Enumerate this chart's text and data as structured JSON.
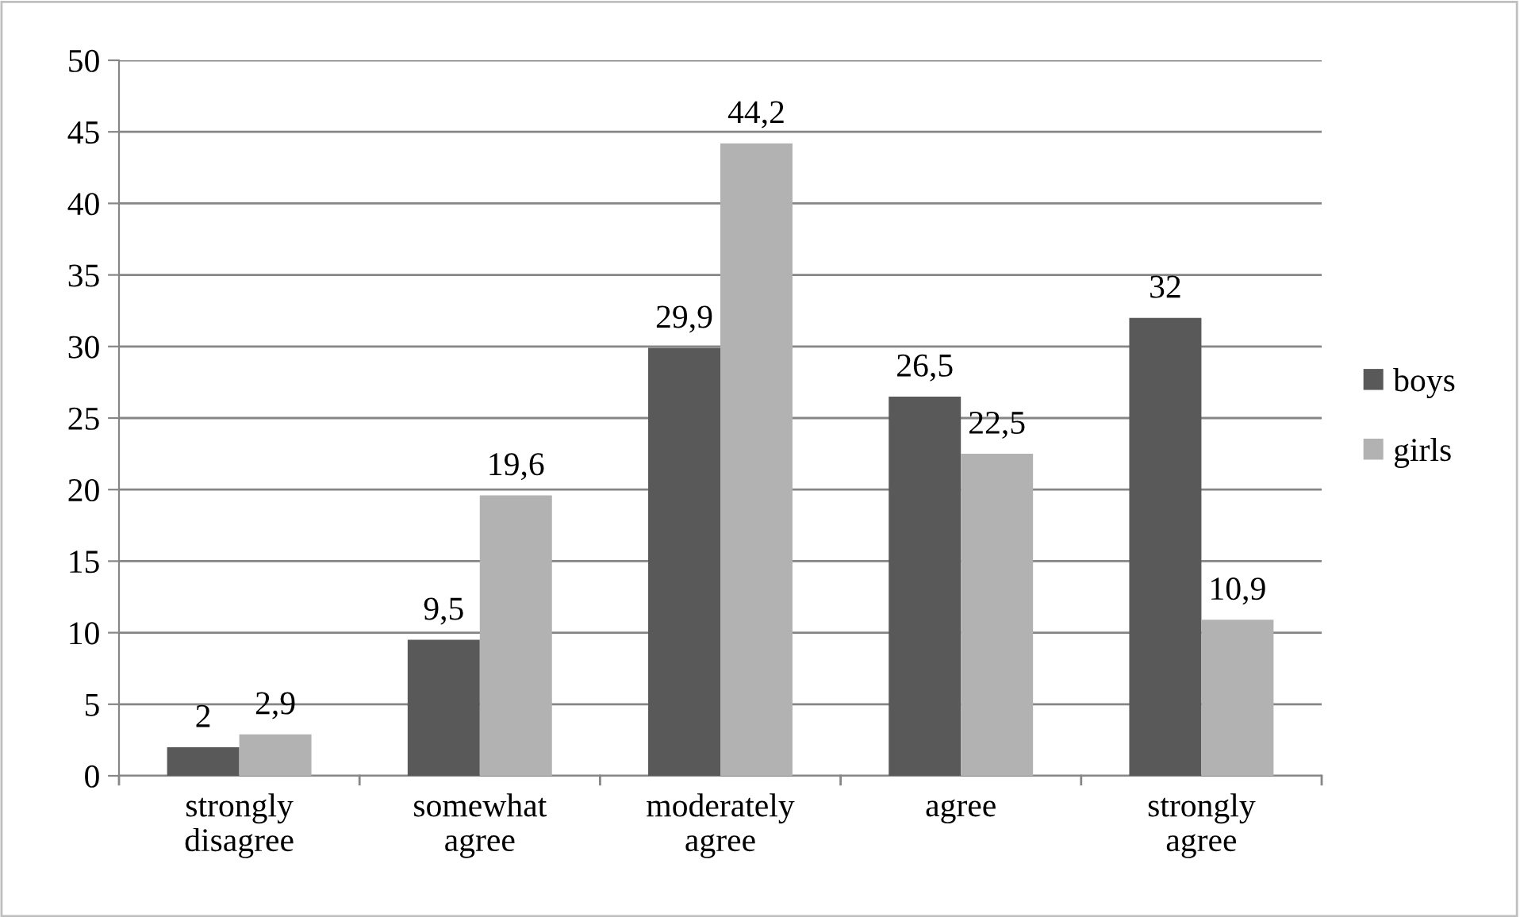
{
  "chart_data": {
    "type": "bar",
    "categories": [
      "strongly\ndisagree",
      "somewhat\nagree",
      "moderately\nagree",
      "agree",
      "strongly\nagree"
    ],
    "series": [
      {
        "name": "boys",
        "color": "#595959",
        "values": [
          2,
          9.5,
          29.9,
          26.5,
          32
        ],
        "value_labels": [
          "2",
          "9,5",
          "29,9",
          "26,5",
          "32"
        ]
      },
      {
        "name": "girls",
        "color": "#b2b2b2",
        "values": [
          2.9,
          19.6,
          44.2,
          22.5,
          10.9
        ],
        "value_labels": [
          "2,9",
          "19,6",
          "44,2",
          "22,5",
          "10,9"
        ]
      }
    ],
    "ylim": [
      0,
      50
    ],
    "yticks": [
      0,
      5,
      10,
      15,
      20,
      25,
      30,
      35,
      40,
      45,
      50
    ],
    "grid": "y",
    "legend": "right"
  }
}
